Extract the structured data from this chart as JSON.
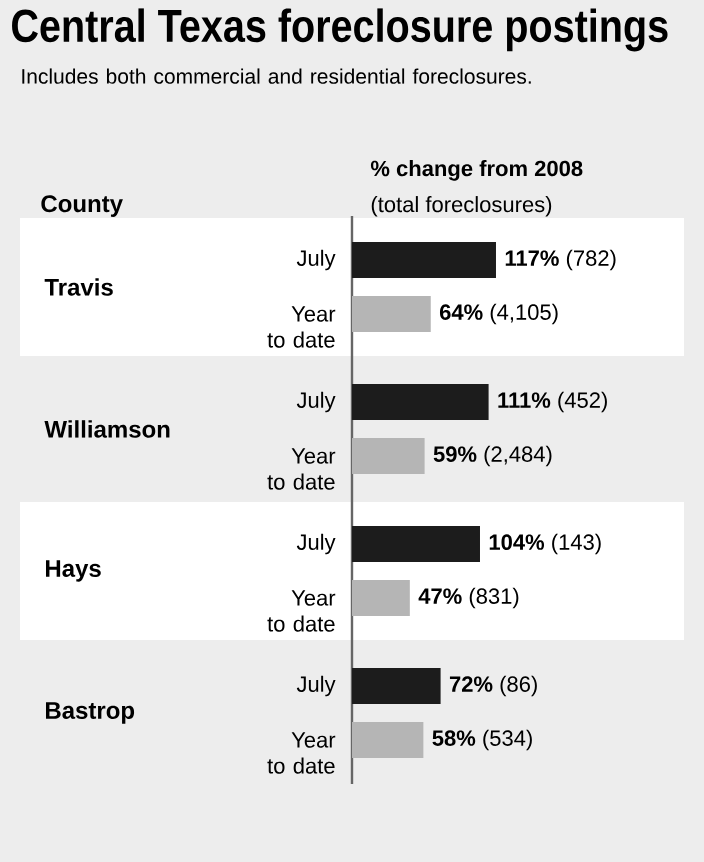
{
  "chart_data": {
    "type": "bar",
    "orientation": "horizontal",
    "title": "Central Texas foreclosure postings",
    "subtitle": "Includes both commercial and residential foreclosures.",
    "ylabel": "County",
    "xlabel": "% change from 2008",
    "annotations": [
      "(total foreclosures)"
    ],
    "categories": [
      "Travis",
      "Williamson",
      "Hays",
      "Bastrop"
    ],
    "series": [
      {
        "name": "July",
        "color": "#1c1c1c",
        "values": [
          117,
          111,
          104,
          72
        ],
        "value_labels": [
          "**117%** (782)",
          "**111%** (452)",
          "**104%** (143)",
          "**72%** (86)"
        ]
      },
      {
        "name": "Year to date",
        "color": "#b5b5b5",
        "values": [
          64,
          59,
          47,
          58
        ],
        "value_labels": [
          "**64%** (4,105)",
          "**59%** (2,484)",
          "**47%** (831)",
          "**58%** (534)"
        ]
      }
    ]
  }
}
